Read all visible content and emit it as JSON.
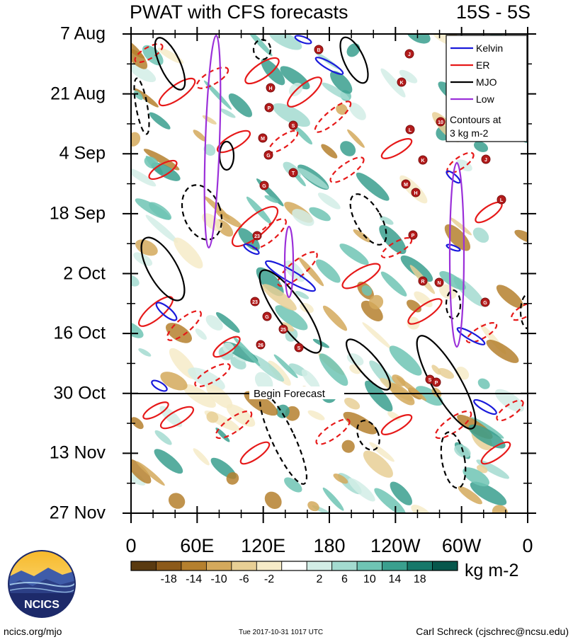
{
  "header": {
    "title": "PWAT with CFS forecasts",
    "region": "15S - 5S"
  },
  "chart_data": {
    "type": "heatmap",
    "title": "PWAT with CFS forecasts",
    "y_ticks": [
      "7 Aug",
      "21 Aug",
      "4 Sep",
      "18 Sep",
      "2 Oct",
      "16 Oct",
      "30 Oct",
      "13 Nov",
      "27 Nov"
    ],
    "x_ticks": [
      "0",
      "60E",
      "120E",
      "180",
      "120W",
      "60W",
      "0"
    ],
    "xlim_deg_east": [
      0,
      360
    ],
    "forecast_line": {
      "date": "30 Oct",
      "label": "Begin Forecast"
    },
    "legend": {
      "placement": "top-right",
      "entries": [
        {
          "name": "Kelvin",
          "color": "#1a1adb"
        },
        {
          "name": "ER",
          "color": "#e61919"
        },
        {
          "name": "MJO",
          "color": "#000000"
        },
        {
          "name": "Low",
          "color": "#9b30d9"
        }
      ],
      "note": "Contours at 3 kg m-2"
    },
    "colorbar": {
      "units": "kg m-2",
      "ticks": [
        -18,
        -14,
        -10,
        -6,
        -2,
        2,
        6,
        10,
        14,
        18
      ],
      "colors": [
        "#5a3a10",
        "#8c5a1a",
        "#b5802e",
        "#d4a95c",
        "#e8cf95",
        "#f6ebc8",
        "#ffffff",
        "#d2ede6",
        "#a3dbd0",
        "#6fc4b4",
        "#3a9f8e",
        "#17786a",
        "#07574c"
      ]
    },
    "storm_labels": [
      "B",
      "J",
      "H",
      "K",
      "P",
      "S",
      "10",
      "L",
      "M",
      "G",
      "J",
      "K",
      "T",
      "G",
      "M",
      "H",
      "L",
      "23",
      "P",
      "R",
      "N",
      "G",
      "23",
      "G",
      "25",
      "26",
      "S",
      "S",
      "P"
    ]
  },
  "logo": {
    "text": "NCICS"
  },
  "footer": {
    "left": "ncics.org/mjo",
    "center": "Tue 2017-10-31 1017 UTC",
    "right": "Carl Schreck (cjschrec@ncsu.edu)"
  }
}
